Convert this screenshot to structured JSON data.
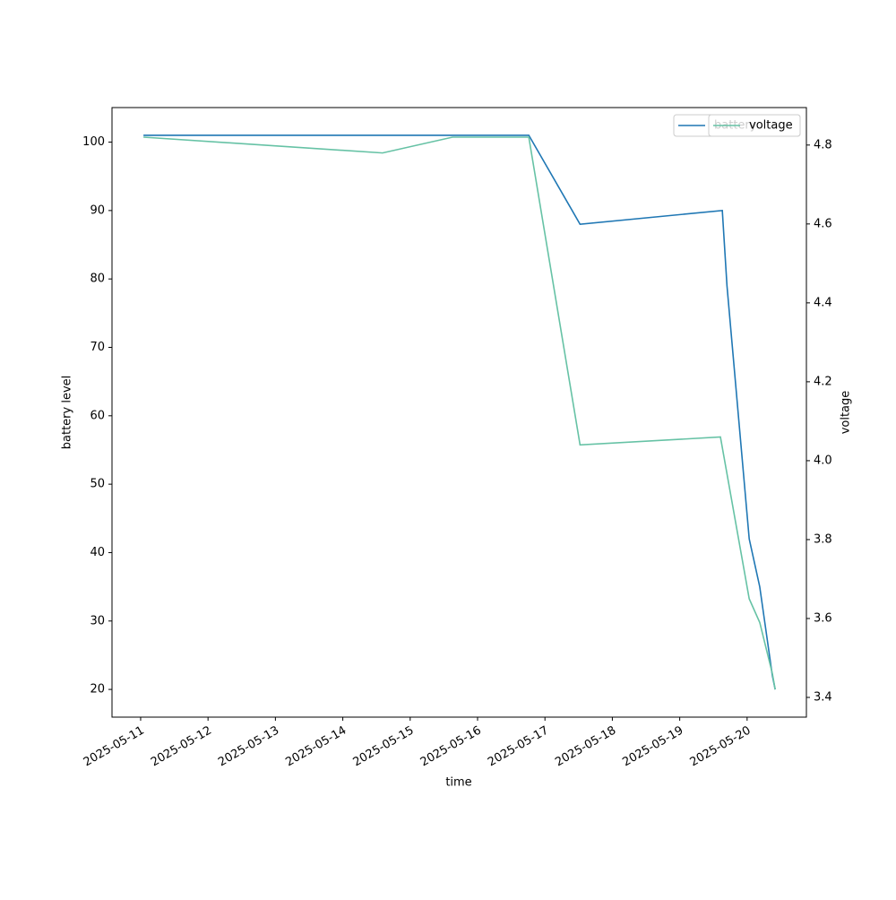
{
  "chart_data": {
    "type": "line",
    "x_label": "time",
    "y_label": "battery level",
    "y2_label": "voltage",
    "xlim": [
      "2025-05-10 13:48",
      "2025-05-20 21:07"
    ],
    "xticks": [
      "2025-05-11",
      "2025-05-12",
      "2025-05-13",
      "2025-05-14",
      "2025-05-15",
      "2025-05-16",
      "2025-05-17",
      "2025-05-18",
      "2025-05-19",
      "2025-05-20"
    ],
    "ylim": [
      15.95,
      105.05
    ],
    "yticks": [
      20,
      30,
      40,
      50,
      60,
      70,
      80,
      90,
      100
    ],
    "y2lim": [
      3.35,
      4.895
    ],
    "y2ticks": [
      3.4,
      3.6,
      3.8,
      {
        "value": 4,
        "label": "4.0"
      },
      4.2,
      4.4,
      4.6,
      4.8
    ],
    "legend": "upper right",
    "series": [
      {
        "name": "battery",
        "color": "#1f77b4",
        "axis": "y",
        "x": [
          "2025-05-11 01:00",
          "2025-05-16 18:15",
          "2025-05-17 12:30",
          "2025-05-19 15:10",
          "2025-05-19 16:50",
          "2025-05-20 00:45",
          "2025-05-20 04:30",
          "2025-05-20 09:00",
          "2025-05-20 10:00"
        ],
        "values": [
          101,
          101,
          88,
          90,
          79,
          42,
          35,
          22,
          20
        ]
      },
      {
        "name": "voltage",
        "color": "#66c2a5",
        "axis": "y2",
        "x": [
          "2025-05-11 01:00",
          "2025-05-14 14:10",
          "2025-05-15 15:05",
          "2025-05-16 18:15",
          "2025-05-17 12:30",
          "2025-05-19 14:30",
          "2025-05-20 00:45",
          "2025-05-20 04:30",
          "2025-05-20 09:00",
          "2025-05-20 10:00"
        ],
        "values": [
          4.82,
          4.78,
          4.82,
          4.82,
          4.04,
          4.06,
          3.65,
          3.59,
          3.46,
          3.42
        ]
      }
    ]
  }
}
